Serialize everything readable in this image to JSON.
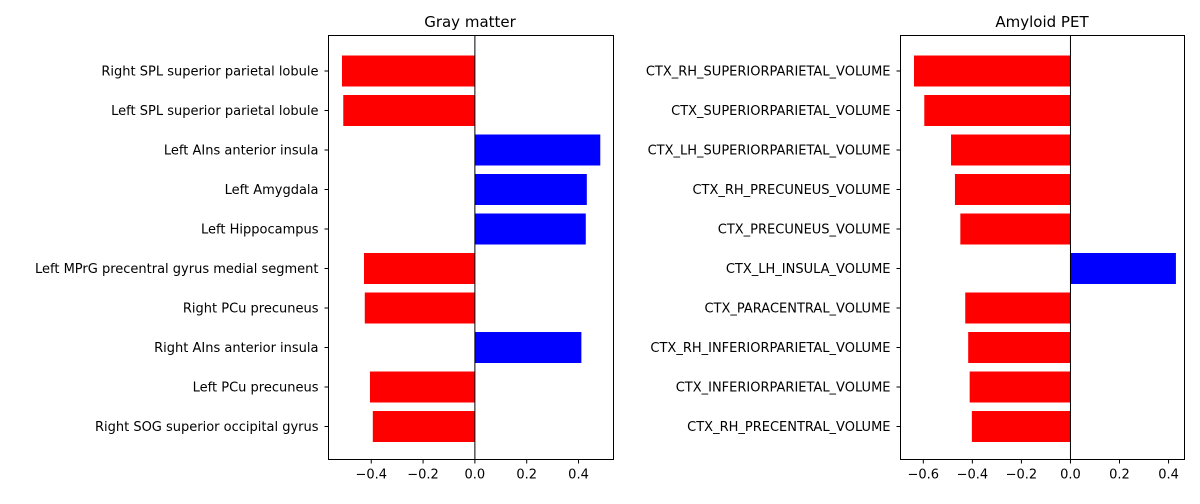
{
  "chart_data": [
    {
      "type": "bar",
      "orientation": "horizontal",
      "title": "Gray matter",
      "xlabel": "",
      "ylabel": "",
      "xlim": [
        -0.565,
        0.535
      ],
      "xticks": [
        "−0.4",
        "−0.2",
        "0.0",
        "0.2",
        "0.4"
      ],
      "xtick_values": [
        -0.4,
        -0.2,
        0.0,
        0.2,
        0.4
      ],
      "grid": false,
      "categories": [
        "Right SPL superior parietal lobule",
        "Left SPL superior parietal lobule",
        "Left AIns anterior insula",
        "Left Amygdala",
        "Left Hippocampus",
        "Left MPrG precentral gyrus medial segment",
        "Right PCu precuneus",
        "Right AIns anterior insula",
        "Left PCu precuneus",
        "Right SOG superior occipital gyrus"
      ],
      "values": [
        -0.513,
        -0.508,
        0.484,
        0.432,
        0.428,
        -0.428,
        -0.425,
        0.411,
        -0.405,
        -0.394
      ],
      "colors": [
        "#ff0000",
        "#ff0000",
        "#0000ff",
        "#0000ff",
        "#0000ff",
        "#ff0000",
        "#ff0000",
        "#0000ff",
        "#ff0000",
        "#ff0000"
      ]
    },
    {
      "type": "bar",
      "orientation": "horizontal",
      "title": "Amyloid PET",
      "xlabel": "",
      "ylabel": "",
      "xlim": [
        -0.693,
        0.465
      ],
      "xticks": [
        "−0.6",
        "−0.4",
        "−0.2",
        "0.0",
        "0.2",
        "0.4"
      ],
      "xtick_values": [
        -0.6,
        -0.4,
        -0.2,
        0.0,
        0.2,
        0.4
      ],
      "grid": false,
      "categories": [
        "CTX_RH_SUPERIORPARIETAL_VOLUME",
        "CTX_SUPERIORPARIETAL_VOLUME",
        "CTX_LH_SUPERIORPARIETAL_VOLUME",
        "CTX_RH_PRECUNEUS_VOLUME",
        "CTX_PRECUNEUS_VOLUME",
        "CTX_LH_INSULA_VOLUME",
        "CTX_PARACENTRAL_VOLUME",
        "CTX_RH_INFERIORPARIETAL_VOLUME",
        "CTX_INFERIORPARIETAL_VOLUME",
        "CTX_RH_PRECENTRAL_VOLUME"
      ],
      "values": [
        -0.638,
        -0.596,
        -0.487,
        -0.471,
        -0.449,
        0.43,
        -0.429,
        -0.417,
        -0.411,
        -0.402
      ],
      "colors": [
        "#ff0000",
        "#ff0000",
        "#ff0000",
        "#ff0000",
        "#ff0000",
        "#0000ff",
        "#ff0000",
        "#ff0000",
        "#ff0000",
        "#ff0000"
      ]
    }
  ]
}
